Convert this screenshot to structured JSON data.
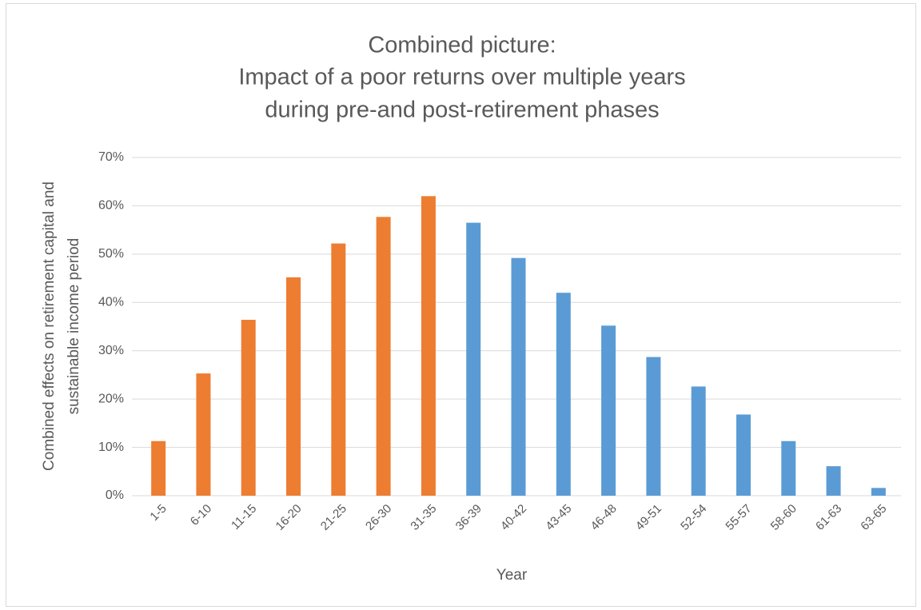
{
  "chart_data": {
    "type": "bar",
    "title": [
      "Combined picture:",
      "Impact of a poor returns over multiple years",
      "during pre-and post-retirement phases"
    ],
    "ylabel": [
      "Combined effects on retirement capital and",
      "sustainable income period"
    ],
    "xlabel": "Year",
    "categories": [
      "1-5",
      "6-10",
      "11-15",
      "16-20",
      "21-25",
      "26-30",
      "31-35",
      "36-39",
      "40-42",
      "43-45",
      "46-48",
      "49-51",
      "52-54",
      "55-57",
      "58-60",
      "61-63",
      "63-65"
    ],
    "values": [
      11.3,
      25.3,
      36.4,
      45.2,
      52.2,
      57.7,
      62.0,
      56.5,
      49.2,
      42.0,
      35.2,
      28.7,
      22.6,
      16.8,
      11.3,
      6.1,
      1.6
    ],
    "colors": [
      "#ed7d31",
      "#ed7d31",
      "#ed7d31",
      "#ed7d31",
      "#ed7d31",
      "#ed7d31",
      "#ed7d31",
      "#5b9bd5",
      "#5b9bd5",
      "#5b9bd5",
      "#5b9bd5",
      "#5b9bd5",
      "#5b9bd5",
      "#5b9bd5",
      "#5b9bd5",
      "#5b9bd5",
      "#5b9bd5"
    ],
    "ylim": [
      0,
      70
    ],
    "yticks": [
      {
        "value": 0,
        "label": "0%"
      },
      {
        "value": 10,
        "label": "10%"
      },
      {
        "value": 20,
        "label": "20%"
      },
      {
        "value": 30,
        "label": "30%"
      },
      {
        "value": 40,
        "label": "40%"
      },
      {
        "value": 50,
        "label": "50%"
      },
      {
        "value": 60,
        "label": "60%"
      },
      {
        "value": 70,
        "label": "70%"
      }
    ],
    "grid": true
  }
}
